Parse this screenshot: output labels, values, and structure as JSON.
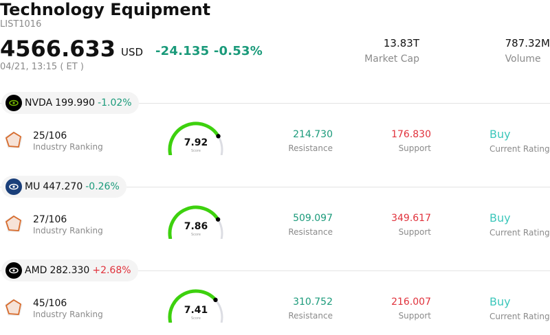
{
  "header": {
    "title": "Technology Equipment",
    "code": "LIST1016",
    "price": "4566.633",
    "currency": "USD",
    "change": "-24.135",
    "change_pct": "-0.53%",
    "timestamp": "04/21, 13:15  ( ET )",
    "market_cap_value": "13.83T",
    "market_cap_label": "Market Cap",
    "volume_value": "787.32M",
    "volume_label": "Volume"
  },
  "stocks": [
    {
      "symbol": "NVDA",
      "price": "199.990",
      "change_pct": "-1.02%",
      "direction": "down",
      "logo_color": "#000000",
      "logo_accent": "#76b900",
      "rank": "25/106",
      "rank_label": "Industry Ranking",
      "score": "7.92",
      "score_value": 7.92,
      "score_label": "Score",
      "resistance": "214.730",
      "resistance_label": "Resistance",
      "support": "176.830",
      "support_label": "Support",
      "rating": "Buy",
      "rating_label": "Current Rating"
    },
    {
      "symbol": "MU",
      "price": "447.270",
      "change_pct": "-0.26%",
      "direction": "down",
      "logo_color": "#1a3f7a",
      "logo_accent": "#ffffff",
      "rank": "27/106",
      "rank_label": "Industry Ranking",
      "score": "7.86",
      "score_value": 7.86,
      "score_label": "Score",
      "resistance": "509.097",
      "resistance_label": "Resistance",
      "support": "349.617",
      "support_label": "Support",
      "rating": "Buy",
      "rating_label": "Current Rating"
    },
    {
      "symbol": "AMD",
      "price": "282.330",
      "change_pct": "+2.68%",
      "direction": "up",
      "logo_color": "#000000",
      "logo_accent": "#ffffff",
      "rank": "45/106",
      "rank_label": "Industry Ranking",
      "score": "7.41",
      "score_value": 7.41,
      "score_label": "Score",
      "resistance": "310.752",
      "resistance_label": "Resistance",
      "support": "216.007",
      "support_label": "Support",
      "rating": "Buy",
      "rating_label": "Current Rating"
    }
  ],
  "colors": {
    "gauge_fill": "#3dd10e",
    "gauge_track": "#dcdde3",
    "rating": "#3cc7bb",
    "positive": "#e0313b",
    "negative": "#1a9a7a"
  }
}
